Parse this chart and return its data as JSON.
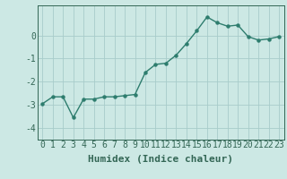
{
  "x": [
    0,
    1,
    2,
    3,
    4,
    5,
    6,
    7,
    8,
    9,
    10,
    11,
    12,
    13,
    14,
    15,
    16,
    17,
    18,
    19,
    20,
    21,
    22,
    23
  ],
  "y": [
    -2.95,
    -2.65,
    -2.65,
    -3.55,
    -2.75,
    -2.75,
    -2.65,
    -2.65,
    -2.6,
    -2.55,
    -1.6,
    -1.25,
    -1.2,
    -0.85,
    -0.35,
    0.2,
    0.8,
    0.55,
    0.4,
    0.45,
    -0.05,
    -0.2,
    -0.15,
    -0.05
  ],
  "line_color": "#2e7d6e",
  "marker": "o",
  "marker_size": 2.2,
  "bg_color": "#cce8e4",
  "grid_color": "#a8ccca",
  "axes_color": "#336655",
  "xlabel": "Humidex (Indice chaleur)",
  "xlabel_fontsize": 8,
  "yticks": [
    -4,
    -3,
    -2,
    -1,
    0
  ],
  "xtick_labels": [
    "0",
    "1",
    "2",
    "3",
    "4",
    "5",
    "6",
    "7",
    "8",
    "9",
    "10",
    "11",
    "12",
    "13",
    "14",
    "15",
    "16",
    "17",
    "18",
    "19",
    "20",
    "21",
    "22",
    "23"
  ],
  "ylim": [
    -4.5,
    1.3
  ],
  "xlim": [
    -0.5,
    23.5
  ],
  "tick_fontsize": 7,
  "line_width": 1.0
}
